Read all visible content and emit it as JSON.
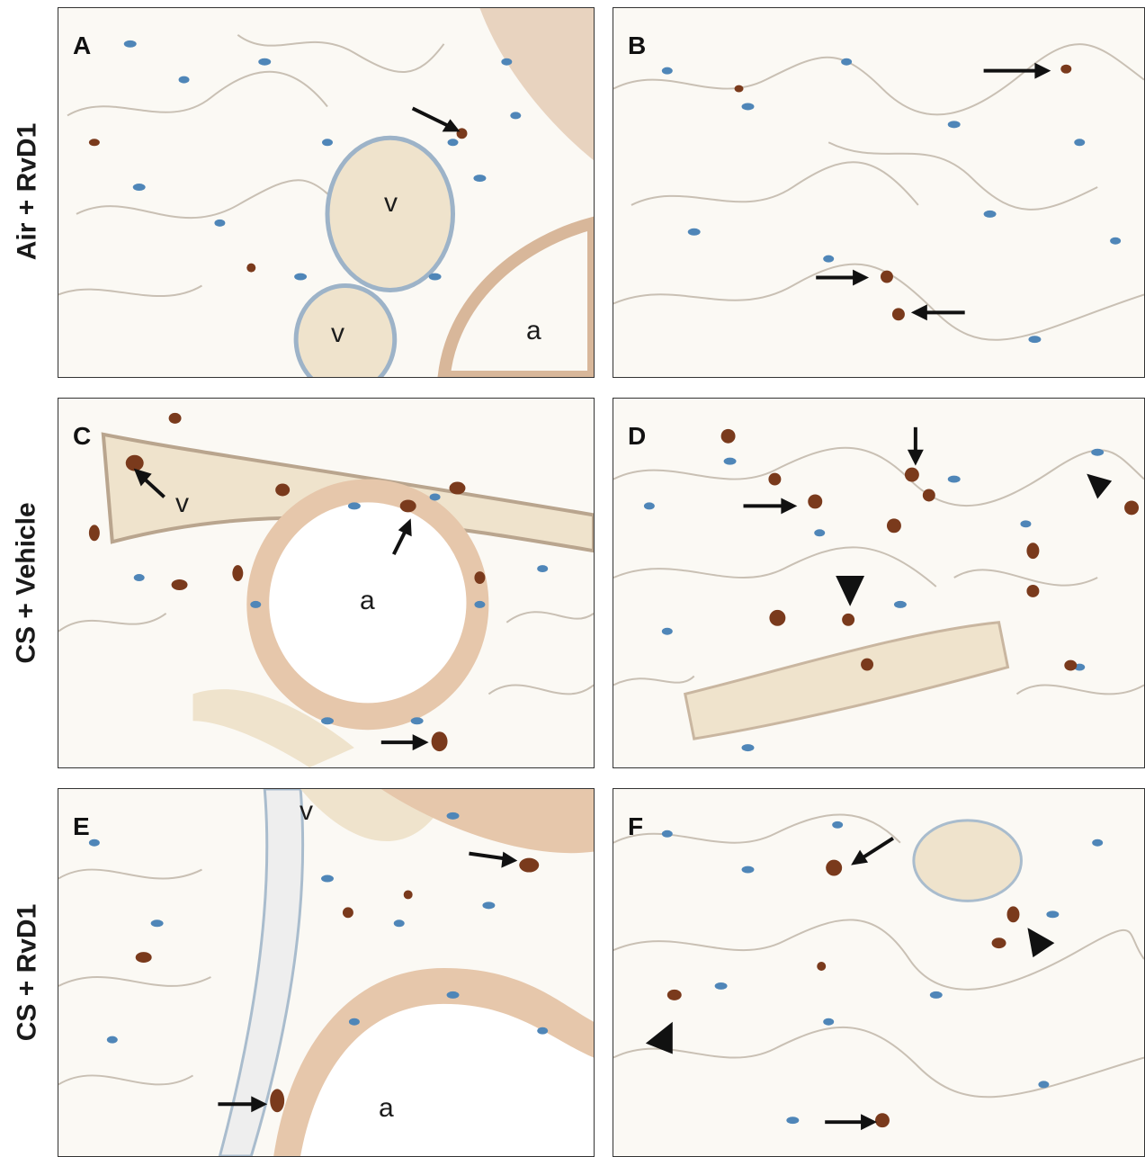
{
  "figure": {
    "rows": [
      {
        "label": "Air + RvD1"
      },
      {
        "label": "CS + Vehicle"
      },
      {
        "label": "CS + RvD1"
      }
    ],
    "panels": [
      {
        "letter": "A",
        "labels": [
          "v",
          "v",
          "a"
        ]
      },
      {
        "letter": "B",
        "labels": []
      },
      {
        "letter": "C",
        "labels": [
          "v",
          "a"
        ]
      },
      {
        "letter": "D",
        "labels": []
      },
      {
        "letter": "E",
        "labels": [
          "v",
          "a"
        ]
      },
      {
        "letter": "F",
        "labels": []
      }
    ],
    "colors": {
      "background": "#fbf9f4",
      "nucleus_blue": "#4f86b8",
      "stained_brown": "#7a3a1c",
      "vessel_fill": "#efe3cc",
      "airway_wall": "#d8b79a",
      "arrow": "#111111"
    }
  }
}
